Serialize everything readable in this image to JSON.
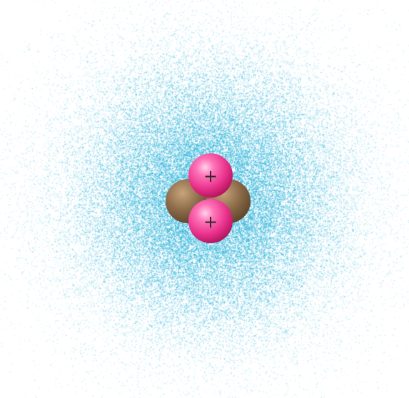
{
  "colors": {
    "background": "#ffffff",
    "electron_cloud": "#2fb4da",
    "proton": "#e8308a",
    "proton_highlight": "#ffb8dc",
    "neutron": "#8a6a48",
    "neutron_highlight": "#c9a47c"
  },
  "nucleus": {
    "protons": [
      {
        "charge_label": "+"
      },
      {
        "charge_label": "+"
      }
    ],
    "neutron_count": 2
  }
}
